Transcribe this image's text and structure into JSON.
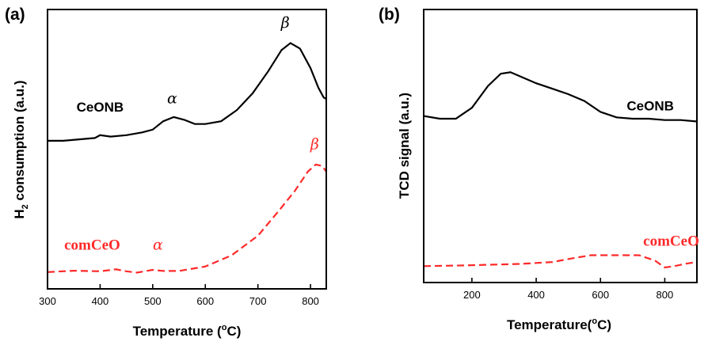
{
  "chart_data": [
    {
      "panel": "(a)",
      "type": "line",
      "xlabel_main": "Temperature (",
      "xlabel_sup": "o",
      "xlabel_end": "C)",
      "ylabel_pre": "H",
      "ylabel_sub": "2",
      "ylabel_post": " consumption (a.u.)",
      "xlim": [
        300,
        830
      ],
      "ylim": [
        0,
        1
      ],
      "x_ticks": [
        300,
        400,
        500,
        600,
        700,
        800
      ],
      "series": [
        {
          "name": "CeONB",
          "color": "#000000",
          "style": "solid",
          "points": [
            [
              300,
              0.53
            ],
            [
              330,
              0.53
            ],
            [
              360,
              0.535
            ],
            [
              390,
              0.54
            ],
            [
              400,
              0.55
            ],
            [
              420,
              0.545
            ],
            [
              450,
              0.55
            ],
            [
              480,
              0.56
            ],
            [
              500,
              0.57
            ],
            [
              520,
              0.6
            ],
            [
              540,
              0.615
            ],
            [
              560,
              0.605
            ],
            [
              580,
              0.59
            ],
            [
              600,
              0.59
            ],
            [
              630,
              0.6
            ],
            [
              660,
              0.64
            ],
            [
              690,
              0.7
            ],
            [
              720,
              0.78
            ],
            [
              745,
              0.855
            ],
            [
              762,
              0.88
            ],
            [
              780,
              0.86
            ],
            [
              800,
              0.79
            ],
            [
              815,
              0.72
            ],
            [
              825,
              0.685
            ],
            [
              830,
              0.68
            ]
          ]
        },
        {
          "name": "comCeO",
          "color": "#ff2a2a",
          "style": "dashed",
          "points": [
            [
              300,
              0.06
            ],
            [
              350,
              0.065
            ],
            [
              400,
              0.063
            ],
            [
              430,
              0.07
            ],
            [
              450,
              0.063
            ],
            [
              470,
              0.058
            ],
            [
              500,
              0.068
            ],
            [
              520,
              0.064
            ],
            [
              550,
              0.064
            ],
            [
              600,
              0.08
            ],
            [
              650,
              0.12
            ],
            [
              700,
              0.19
            ],
            [
              740,
              0.28
            ],
            [
              770,
              0.35
            ],
            [
              795,
              0.42
            ],
            [
              810,
              0.445
            ],
            [
              822,
              0.44
            ],
            [
              830,
              0.42
            ]
          ]
        }
      ],
      "annotations": [
        {
          "id": "ceonb",
          "text": "CeONB",
          "color": "#000000",
          "x": 400,
          "y": 0.635
        },
        {
          "id": "alpha_black",
          "text": "α",
          "color": "#000000",
          "x": 537,
          "y": 0.665
        },
        {
          "id": "beta_black",
          "text": "β",
          "color": "#000000",
          "x": 752,
          "y": 0.935
        },
        {
          "id": "comceo",
          "text": "comCeO",
          "color": "#ff2a2a",
          "x": 385,
          "y": 0.14
        },
        {
          "id": "alpha_red",
          "text": "α",
          "color": "#ff2a2a",
          "x": 510,
          "y": 0.14
        },
        {
          "id": "beta_red",
          "text": "β",
          "color": "#ff2a2a",
          "x": 808,
          "y": 0.5
        }
      ]
    },
    {
      "panel": "(b)",
      "type": "line",
      "xlabel_main": "Temperature(",
      "xlabel_sup": "o",
      "xlabel_end": "C)",
      "ylabel": "TCD signal (a.u.)",
      "xlim": [
        50,
        900
      ],
      "ylim": [
        0,
        1
      ],
      "x_ticks": [
        200,
        400,
        600,
        800
      ],
      "series": [
        {
          "name": "CeONB",
          "color": "#000000",
          "style": "solid",
          "points": [
            [
              50,
              0.61
            ],
            [
              100,
              0.6
            ],
            [
              150,
              0.6
            ],
            [
              200,
              0.64
            ],
            [
              250,
              0.72
            ],
            [
              290,
              0.765
            ],
            [
              320,
              0.77
            ],
            [
              350,
              0.755
            ],
            [
              400,
              0.73
            ],
            [
              450,
              0.71
            ],
            [
              500,
              0.69
            ],
            [
              550,
              0.665
            ],
            [
              600,
              0.625
            ],
            [
              650,
              0.605
            ],
            [
              700,
              0.6
            ],
            [
              750,
              0.6
            ],
            [
              800,
              0.595
            ],
            [
              850,
              0.595
            ],
            [
              900,
              0.59
            ]
          ]
        },
        {
          "name": "comCeO",
          "color": "#ff2a2a",
          "style": "dashed",
          "points": [
            [
              50,
              0.06
            ],
            [
              150,
              0.062
            ],
            [
              250,
              0.065
            ],
            [
              350,
              0.068
            ],
            [
              450,
              0.075
            ],
            [
              520,
              0.09
            ],
            [
              570,
              0.1
            ],
            [
              650,
              0.1
            ],
            [
              720,
              0.1
            ],
            [
              770,
              0.08
            ],
            [
              800,
              0.055
            ],
            [
              830,
              0.06
            ],
            [
              870,
              0.07
            ],
            [
              900,
              0.075
            ]
          ]
        }
      ],
      "annotations": [
        {
          "id": "ceonb",
          "text": "CeONB",
          "color": "#000000",
          "x": 755,
          "y": 0.63
        },
        {
          "id": "comceo",
          "text": "comCeO",
          "color": "#ff2a2a",
          "x": 820,
          "y": 0.135
        }
      ]
    }
  ]
}
